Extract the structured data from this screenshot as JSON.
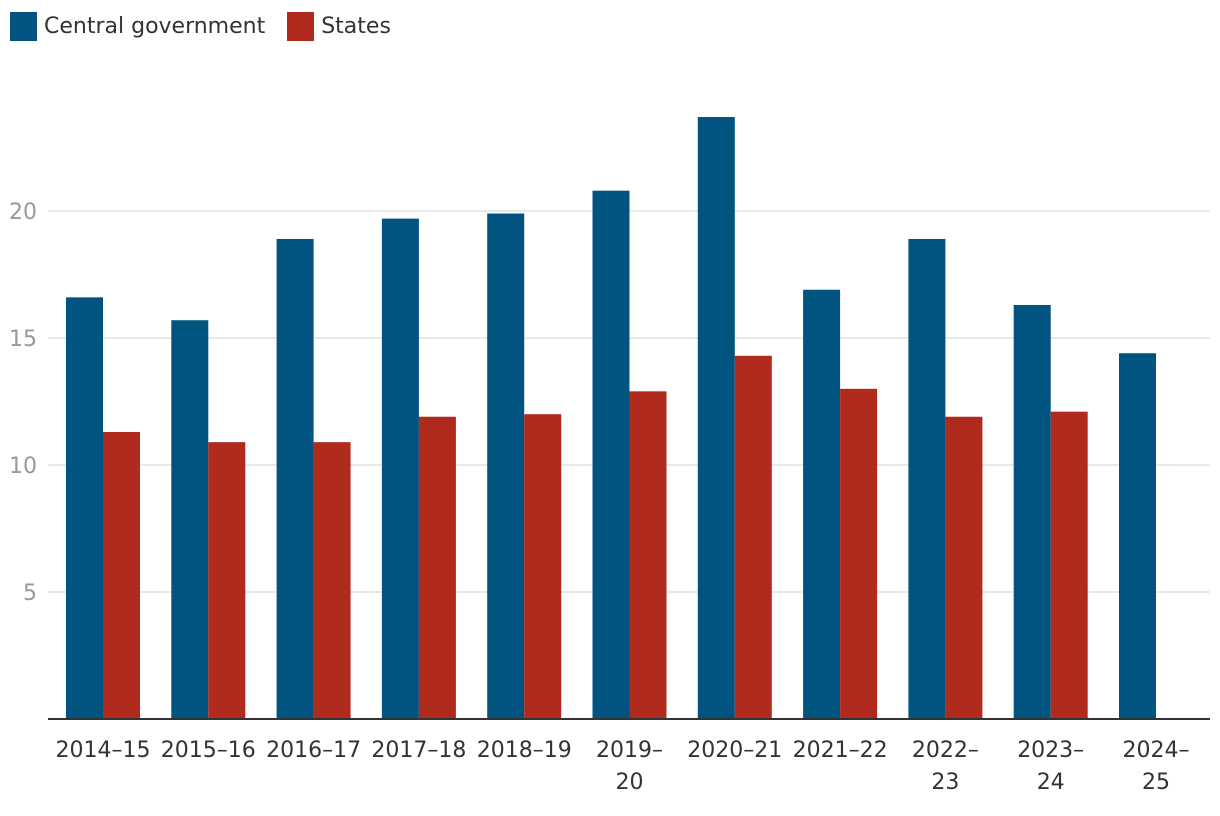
{
  "chart_data": {
    "type": "bar",
    "title": "",
    "xlabel": "",
    "ylabel": "",
    "ylim": [
      0,
      25
    ],
    "yticks": [
      5,
      10,
      15,
      20
    ],
    "grid": true,
    "legend_position": "top-left",
    "categories": [
      "2014–15",
      "2015–16",
      "2016–17",
      "2017–18",
      "2018–19",
      "2019–20",
      "2020–21",
      "2021–22",
      "2022–23",
      "2023–24",
      "2024–25"
    ],
    "category_lines": [
      [
        "2014–15"
      ],
      [
        "2015–16"
      ],
      [
        "2016–17"
      ],
      [
        "2017–18"
      ],
      [
        "2018–19"
      ],
      [
        "2019–",
        "20"
      ],
      [
        "2020–21"
      ],
      [
        "2021–22"
      ],
      [
        "2022–",
        "23"
      ],
      [
        "2023–",
        "24"
      ],
      [
        "2024–",
        "25"
      ]
    ],
    "series": [
      {
        "name": "Central government",
        "color": "#00547f",
        "values": [
          16.6,
          15.7,
          18.9,
          19.7,
          19.9,
          20.8,
          23.7,
          16.9,
          18.9,
          16.3,
          14.4
        ]
      },
      {
        "name": "States",
        "color": "#b02a1d",
        "values": [
          11.3,
          10.9,
          10.9,
          11.9,
          12.0,
          12.9,
          14.3,
          13.0,
          11.9,
          12.1,
          null
        ]
      }
    ]
  }
}
